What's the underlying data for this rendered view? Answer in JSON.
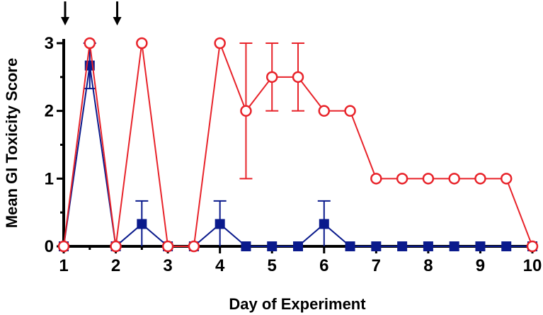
{
  "chart_data": {
    "type": "line",
    "title": "",
    "xlabel": "Day of  Experiment",
    "ylabel": "Mean GI Toxicity Score",
    "xlim": [
      1,
      10
    ],
    "ylim": [
      0,
      3
    ],
    "x_ticks": [
      "1",
      "2",
      "3",
      "4",
      "5",
      "6",
      "7",
      "8",
      "9",
      "10"
    ],
    "y_ticks": [
      "0",
      "1",
      "2",
      "3"
    ],
    "grid": false,
    "legend": "none",
    "arrows_at_x": [
      1,
      2
    ],
    "series": [
      {
        "marker": "open-circle",
        "color": "#e8232a",
        "points": [
          {
            "x": 1.0,
            "y": 0
          },
          {
            "x": 1.5,
            "y": 3
          },
          {
            "x": 2.0,
            "y": 0
          },
          {
            "x": 2.5,
            "y": 3
          },
          {
            "x": 3.0,
            "y": 0
          },
          {
            "x": 3.5,
            "y": 0
          },
          {
            "x": 4.0,
            "y": 3
          },
          {
            "x": 4.5,
            "y": 2,
            "err_low": 1,
            "err_high": 3
          },
          {
            "x": 5.0,
            "y": 2.5,
            "err_low": 2,
            "err_high": 3
          },
          {
            "x": 5.5,
            "y": 2.5,
            "err_low": 2,
            "err_high": 3
          },
          {
            "x": 6.0,
            "y": 2
          },
          {
            "x": 6.5,
            "y": 2
          },
          {
            "x": 7.0,
            "y": 1
          },
          {
            "x": 7.5,
            "y": 1
          },
          {
            "x": 8.0,
            "y": 1
          },
          {
            "x": 8.5,
            "y": 1
          },
          {
            "x": 9.0,
            "y": 1
          },
          {
            "x": 9.5,
            "y": 1
          },
          {
            "x": 10.0,
            "y": 0
          }
        ]
      },
      {
        "marker": "filled-square",
        "color": "#0a1a8c",
        "points": [
          {
            "x": 1.0,
            "y": 0
          },
          {
            "x": 1.5,
            "y": 2.67,
            "err_low": 2.33,
            "err_high": 3.0
          },
          {
            "x": 2.0,
            "y": 0
          },
          {
            "x": 2.5,
            "y": 0.33,
            "err_low": 0,
            "err_high": 0.67
          },
          {
            "x": 3.0,
            "y": 0
          },
          {
            "x": 3.5,
            "y": 0
          },
          {
            "x": 4.0,
            "y": 0.33,
            "err_low": 0,
            "err_high": 0.67
          },
          {
            "x": 4.5,
            "y": 0
          },
          {
            "x": 5.0,
            "y": 0
          },
          {
            "x": 5.5,
            "y": 0
          },
          {
            "x": 6.0,
            "y": 0.33,
            "err_low": 0,
            "err_high": 0.67
          },
          {
            "x": 6.5,
            "y": 0
          },
          {
            "x": 7.0,
            "y": 0
          },
          {
            "x": 7.5,
            "y": 0
          },
          {
            "x": 8.0,
            "y": 0
          },
          {
            "x": 8.5,
            "y": 0
          },
          {
            "x": 9.0,
            "y": 0
          },
          {
            "x": 9.5,
            "y": 0
          },
          {
            "x": 10.0,
            "y": 0
          }
        ]
      }
    ]
  }
}
